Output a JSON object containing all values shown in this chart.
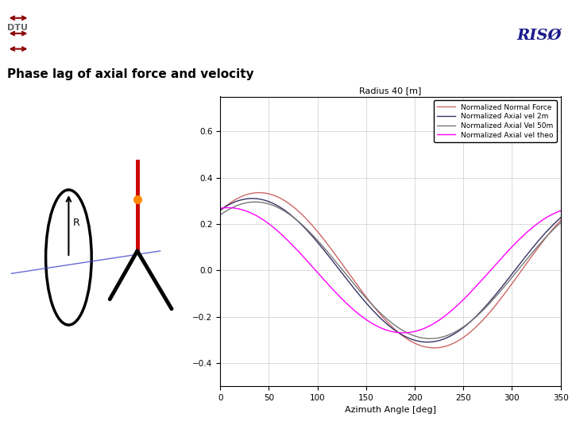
{
  "title": "Phase lag of axial force and velocity",
  "plot_title": "Radius 40 [m]",
  "xlabel": "Azimuth Angle [deg]",
  "xlim": [
    0,
    350
  ],
  "ylim": [
    -0.5,
    0.75
  ],
  "yticks": [
    -0.4,
    -0.2,
    0,
    0.2,
    0.4,
    0.6
  ],
  "xticks": [
    0,
    50,
    100,
    150,
    200,
    250,
    300,
    350
  ],
  "legend_labels": [
    "Normalized Normal Force",
    "Normalized Axial vel 2m",
    "Normalized Axial Vel 50m",
    "Normalized Axial vel theo"
  ],
  "line_colors": [
    "#cc6666",
    "#333366",
    "#777777",
    "#ff00ff"
  ],
  "background_color": "#ffffff",
  "dtu_color": "#8B0000",
  "riso_color": "#1a1a8c",
  "header_bg": "#fde8c8",
  "amp_nf": 0.335,
  "phase_nf": 40,
  "amp_2m": 0.31,
  "phase_2m": 33,
  "amp_50m": 0.295,
  "phase_50m": 36,
  "amp_theo": 0.27,
  "phase_theo": 8
}
